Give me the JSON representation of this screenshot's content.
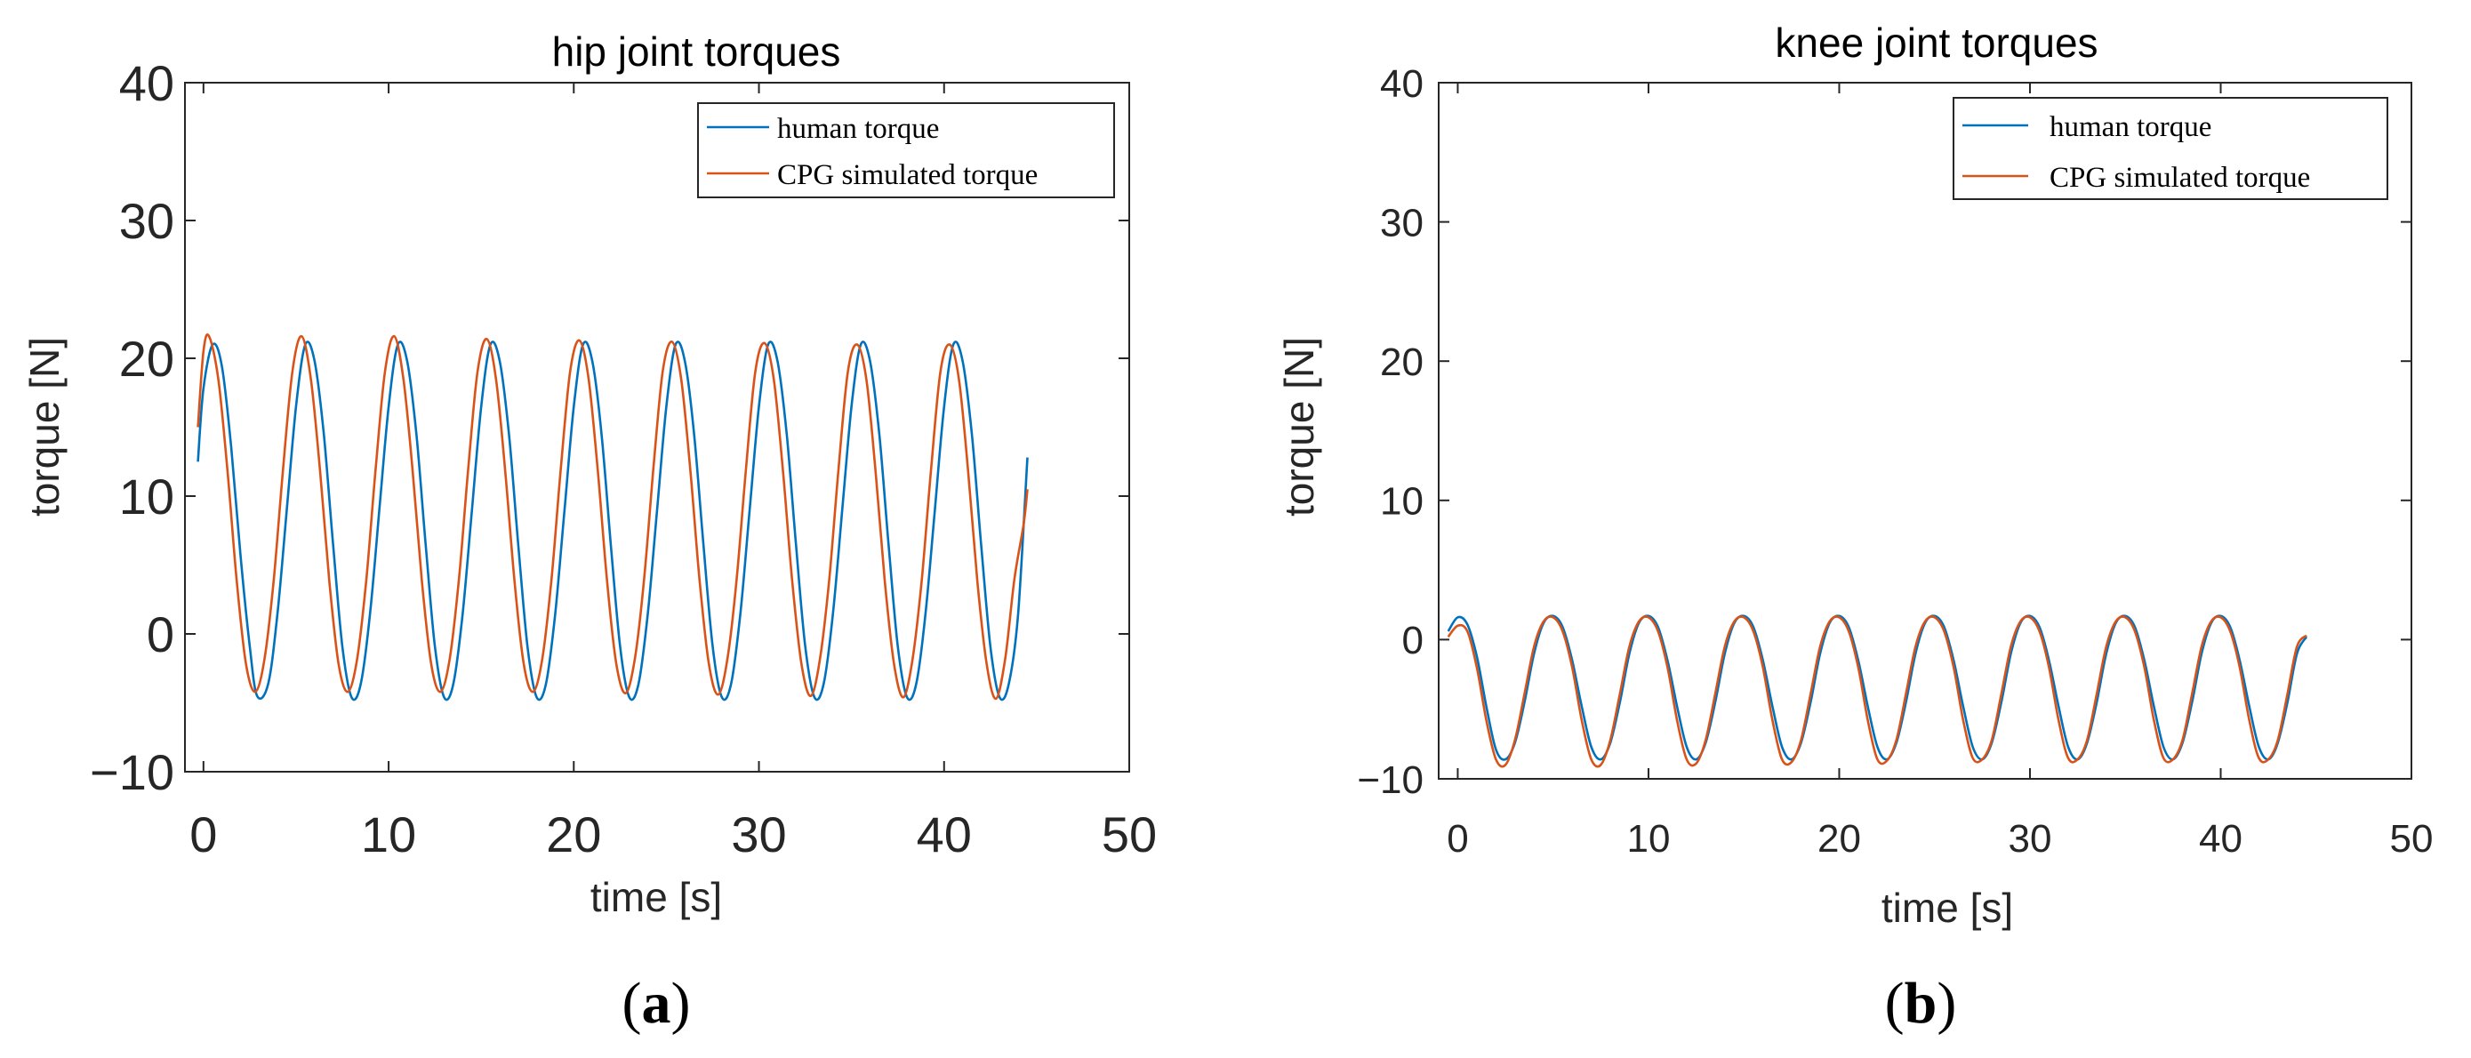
{
  "chart_data": [
    {
      "type": "line",
      "title": "hip joint torques",
      "xlabel": "time [s]",
      "ylabel": "torque [N]",
      "xlim": [
        -1,
        50
      ],
      "ylim": [
        -10,
        40
      ],
      "xticks": [
        "0",
        "10",
        "20",
        "30",
        "40",
        "50"
      ],
      "yticks": [
        "−10",
        "0",
        "10",
        "20",
        "30",
        "40"
      ],
      "grid": false,
      "legend_position": "top-right",
      "panel_label": [
        "(",
        "a",
        ")"
      ],
      "series": [
        {
          "name": "human torque",
          "color": "#0072BD",
          "x": [
            -0.3,
            0,
            0.5,
            1,
            1.5,
            2,
            2.5,
            2.9,
            3.5,
            4,
            4.5,
            5,
            5.5,
            6,
            6.5,
            7,
            7.5,
            8,
            8.5,
            9,
            9.5,
            10,
            10.5,
            11,
            11.5,
            12,
            12.5,
            13,
            13.5,
            14,
            14.5,
            15,
            15.5,
            16,
            16.5,
            17,
            17.5,
            18,
            18.5,
            19,
            19.5,
            20,
            20.5,
            21,
            21.5,
            22,
            22.5,
            23,
            23.5,
            24,
            24.5,
            25,
            25.5,
            26,
            26.5,
            27,
            27.5,
            28,
            28.5,
            29,
            29.5,
            30,
            30.5,
            31,
            31.5,
            32,
            32.5,
            33,
            33.5,
            34,
            34.5,
            35,
            35.5,
            36,
            36.5,
            37,
            37.5,
            38,
            38.5,
            39,
            39.5,
            40,
            40.5,
            41,
            41.5,
            42,
            42.5,
            43,
            43.5,
            44,
            44.5
          ],
          "y": [
            12.5,
            17.8,
            21.0,
            19.4,
            13.5,
            5.7,
            -0.9,
            -4.5,
            -3.6,
            1.5,
            9.0,
            16.5,
            21.0,
            19.8,
            14.5,
            6.5,
            -0.9,
            -4.6,
            -3.6,
            1.5,
            9.0,
            16.5,
            21.0,
            19.8,
            14.5,
            6.5,
            -0.9,
            -4.6,
            -3.6,
            1.5,
            9.0,
            16.5,
            21.0,
            19.8,
            14.5,
            6.5,
            -0.9,
            -4.6,
            -3.6,
            1.5,
            9.0,
            16.5,
            21.0,
            19.8,
            14.5,
            6.5,
            -0.9,
            -4.6,
            -3.6,
            1.5,
            9.0,
            16.5,
            21.0,
            19.8,
            14.5,
            6.5,
            -0.9,
            -4.6,
            -3.6,
            1.5,
            9.0,
            16.5,
            21.0,
            19.8,
            14.5,
            6.5,
            -0.9,
            -4.6,
            -3.6,
            1.5,
            9.0,
            16.5,
            21.0,
            19.8,
            14.5,
            6.5,
            -0.9,
            -4.6,
            -3.6,
            1.5,
            9.0,
            16.5,
            21.0,
            19.8,
            14.5,
            6.5,
            -0.9,
            -4.6,
            -3.6,
            1.5,
            12.8
          ]
        },
        {
          "name": "CPG simulated torque",
          "color": "#D95319",
          "x": [
            -0.3,
            0,
            0.3,
            0.8,
            1.3,
            1.8,
            2.3,
            2.8,
            3.3,
            3.8,
            4.3,
            4.8,
            5.3,
            5.8,
            6.3,
            6.8,
            7.3,
            7.8,
            8.3,
            8.8,
            9.3,
            9.8,
            10.3,
            10.8,
            11.3,
            11.8,
            12.3,
            12.8,
            13.3,
            13.8,
            14.3,
            14.8,
            15.3,
            15.8,
            16.3,
            16.8,
            17.3,
            17.8,
            18.3,
            18.8,
            19.3,
            19.8,
            20.3,
            20.8,
            21.3,
            21.8,
            22.3,
            22.8,
            23.3,
            23.8,
            24.3,
            24.8,
            25.3,
            25.8,
            26.3,
            26.8,
            27.3,
            27.8,
            28.3,
            28.8,
            29.3,
            29.8,
            30.3,
            30.8,
            31.3,
            31.8,
            32.3,
            32.8,
            33.3,
            33.8,
            34.3,
            34.8,
            35.3,
            35.8,
            36.3,
            36.8,
            37.3,
            37.8,
            38.3,
            38.8,
            39.3,
            39.8,
            40.3,
            40.8,
            41.3,
            41.8,
            42.3,
            42.8,
            43.3,
            43.8,
            44.3,
            44.5
          ],
          "y": [
            15.0,
            20.5,
            21.6,
            18.5,
            11.8,
            3.8,
            -2.2,
            -4.2,
            -1.8,
            4.0,
            12.0,
            19.0,
            21.6,
            18.5,
            11.8,
            3.8,
            -2.2,
            -4.2,
            -1.8,
            4.0,
            12.0,
            19.0,
            21.6,
            18.5,
            11.8,
            3.8,
            -2.2,
            -4.2,
            -1.8,
            4.0,
            12.0,
            19.0,
            21.4,
            18.5,
            11.8,
            3.8,
            -2.2,
            -4.2,
            -1.8,
            4.0,
            12.0,
            19.0,
            21.3,
            18.5,
            11.8,
            3.8,
            -2.2,
            -4.3,
            -1.8,
            4.0,
            12.0,
            19.0,
            21.2,
            18.5,
            11.8,
            3.8,
            -2.2,
            -4.4,
            -1.8,
            4.0,
            12.0,
            19.0,
            21.1,
            18.5,
            11.8,
            3.8,
            -2.2,
            -4.5,
            -1.8,
            4.0,
            12.0,
            19.0,
            21.0,
            18.5,
            11.8,
            3.8,
            -2.2,
            -4.6,
            -1.8,
            4.0,
            12.0,
            19.0,
            21.0,
            18.5,
            11.8,
            3.8,
            -2.2,
            -4.7,
            -1.8,
            4.0,
            8.0,
            10.5
          ]
        }
      ]
    },
    {
      "type": "line",
      "title": "knee joint torques",
      "xlabel": "time [s]",
      "ylabel": "torque [N]",
      "xlim": [
        -1,
        50
      ],
      "ylim": [
        -10,
        40
      ],
      "xticks": [
        "0",
        "10",
        "20",
        "30",
        "40",
        "50"
      ],
      "yticks": [
        "−10",
        "0",
        "10",
        "20",
        "30",
        "40"
      ],
      "grid": false,
      "legend_position": "top-right",
      "panel_label": [
        "(",
        "b",
        ")"
      ],
      "series": [
        {
          "name": "human torque",
          "color": "#0072BD",
          "x": [
            -0.5,
            0,
            0.5,
            1,
            1.5,
            2,
            2.5,
            3,
            3.5,
            4,
            4.5,
            5,
            5.5,
            6,
            6.5,
            7,
            7.5,
            8,
            8.5,
            9,
            9.5,
            10,
            10.5,
            11,
            11.5,
            12,
            12.5,
            13,
            13.5,
            14,
            14.5,
            15,
            15.5,
            16,
            16.5,
            17,
            17.5,
            18,
            18.5,
            19,
            19.5,
            20,
            20.5,
            21,
            21.5,
            22,
            22.5,
            23,
            23.5,
            24,
            24.5,
            25,
            25.5,
            26,
            26.5,
            27,
            27.5,
            28,
            28.5,
            29,
            29.5,
            30,
            30.5,
            31,
            31.5,
            32,
            32.5,
            33,
            33.5,
            34,
            34.5,
            35,
            35.5,
            36,
            36.5,
            37,
            37.5,
            38,
            38.5,
            39,
            39.5,
            40,
            40.5,
            41,
            41.5,
            42,
            42.5,
            43,
            43.5,
            44,
            44.5
          ],
          "y": [
            0.6,
            1.6,
            1.1,
            -1.2,
            -4.8,
            -7.9,
            -8.6,
            -7.4,
            -4.5,
            -1.0,
            1.2,
            1.7,
            0.9,
            -1.5,
            -4.8,
            -7.7,
            -8.6,
            -7.4,
            -4.5,
            -1.0,
            1.2,
            1.7,
            0.9,
            -1.5,
            -4.8,
            -7.7,
            -8.6,
            -7.4,
            -4.5,
            -1.0,
            1.2,
            1.7,
            0.9,
            -1.5,
            -4.8,
            -7.7,
            -8.6,
            -7.4,
            -4.5,
            -1.0,
            1.2,
            1.7,
            0.9,
            -1.5,
            -4.8,
            -7.7,
            -8.6,
            -7.4,
            -4.5,
            -1.0,
            1.2,
            1.7,
            0.9,
            -1.5,
            -4.8,
            -7.7,
            -8.6,
            -7.4,
            -4.5,
            -1.0,
            1.2,
            1.7,
            0.9,
            -1.5,
            -4.8,
            -7.7,
            -8.6,
            -7.4,
            -4.5,
            -1.0,
            1.2,
            1.7,
            0.9,
            -1.5,
            -4.8,
            -7.7,
            -8.6,
            -7.4,
            -4.5,
            -1.0,
            1.2,
            1.7,
            0.9,
            -1.5,
            -4.8,
            -7.7,
            -8.6,
            -7.4,
            -4.5,
            -1.0,
            0.2
          ]
        },
        {
          "name": "CPG simulated torque",
          "color": "#D95319",
          "x": [
            -0.5,
            0,
            0.5,
            1,
            1.5,
            2,
            2.5,
            3,
            3.5,
            4,
            4.5,
            5,
            5.5,
            6,
            6.5,
            7,
            7.5,
            8,
            8.5,
            9,
            9.5,
            10,
            10.5,
            11,
            11.5,
            12,
            12.5,
            13,
            13.5,
            14,
            14.5,
            15,
            15.5,
            16,
            16.5,
            17,
            17.5,
            18,
            18.5,
            19,
            19.5,
            20,
            20.5,
            21,
            21.5,
            22,
            22.5,
            23,
            23.5,
            24,
            24.5,
            25,
            25.5,
            26,
            26.5,
            27,
            27.5,
            28,
            28.5,
            29,
            29.5,
            30,
            30.5,
            31,
            31.5,
            32,
            32.5,
            33,
            33.5,
            34,
            34.5,
            35,
            35.5,
            36,
            36.5,
            37,
            37.5,
            38,
            38.5,
            39,
            39.5,
            40,
            40.5,
            41,
            41.5,
            42,
            42.5,
            43,
            43.5,
            44,
            44.5
          ],
          "y": [
            0.2,
            1.0,
            0.6,
            -2.0,
            -5.8,
            -8.6,
            -9.0,
            -7.2,
            -3.9,
            -0.5,
            1.3,
            1.6,
            0.6,
            -2.0,
            -5.8,
            -8.6,
            -9.0,
            -7.2,
            -3.9,
            -0.5,
            1.3,
            1.6,
            0.6,
            -2.0,
            -5.8,
            -8.6,
            -8.9,
            -7.2,
            -3.9,
            -0.5,
            1.3,
            1.6,
            0.6,
            -2.0,
            -5.8,
            -8.6,
            -8.8,
            -7.2,
            -3.9,
            -0.5,
            1.3,
            1.6,
            0.6,
            -2.0,
            -5.8,
            -8.6,
            -8.7,
            -7.2,
            -3.9,
            -0.5,
            1.3,
            1.6,
            0.6,
            -2.0,
            -5.8,
            -8.5,
            -8.6,
            -7.2,
            -3.9,
            -0.5,
            1.3,
            1.6,
            0.6,
            -2.0,
            -5.8,
            -8.5,
            -8.6,
            -7.2,
            -3.9,
            -0.5,
            1.3,
            1.6,
            0.6,
            -2.0,
            -5.8,
            -8.5,
            -8.6,
            -7.2,
            -3.9,
            -0.5,
            1.3,
            1.6,
            0.6,
            -2.0,
            -5.8,
            -8.5,
            -8.6,
            -7.2,
            -3.9,
            -0.5,
            0.3
          ]
        }
      ]
    }
  ]
}
